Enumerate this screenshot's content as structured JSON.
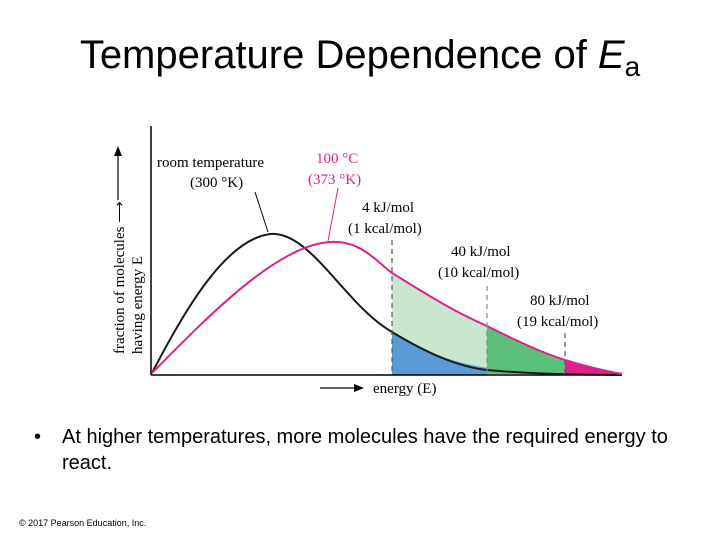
{
  "slide": {
    "title_text": "Temperature Dependence of ",
    "title_symbol": "E",
    "title_subscript": "a",
    "bullet_text": "At higher temperatures, more molecules have the required energy to react.",
    "copyright": "© 2017 Pearson Education, Inc."
  },
  "figure": {
    "y_axis_label_1": "fraction of molecules ⟶",
    "y_axis_label_2": "having energy E",
    "x_axis_label": "energy (E)",
    "room_temp_label_1": "room temperature",
    "room_temp_label_2": "(300 °K)",
    "hot_label_1": "100 °C",
    "hot_label_2": "(373 °K)",
    "ea1_label_1": "4 kJ/mol",
    "ea1_label_2": "(1 kcal/mol)",
    "ea2_label_1": "40 kJ/mol",
    "ea2_label_2": "(10 kcal/mol)",
    "ea3_label_1": "80 kJ/mol",
    "ea3_label_2": "(19 kcal/mol)",
    "colors": {
      "room_curve": "#1a1a1a",
      "hot_curve": "#e0218a",
      "hot_label": "#e0218a",
      "fill_light_green": "#c9e6cf",
      "fill_green": "#5cbf7c",
      "fill_blue": "#5b9bd5",
      "fill_pink": "#e0218a",
      "dashed_line": "#555555"
    }
  }
}
